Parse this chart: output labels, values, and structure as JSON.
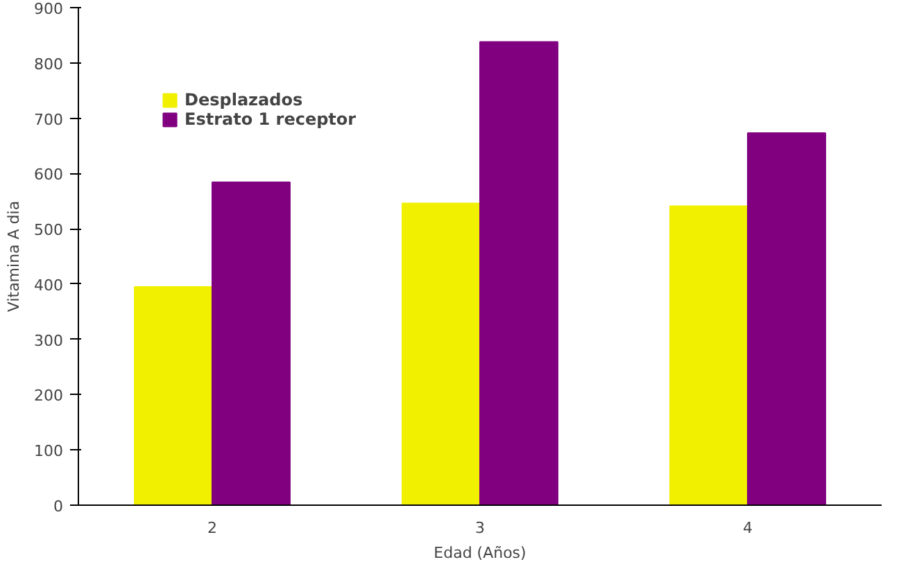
{
  "chart_data": {
    "type": "bar",
    "xlabel": "Edad (Años)",
    "ylabel": "Vitamina A dia",
    "categories": [
      "2",
      "3",
      "4"
    ],
    "series": [
      {
        "name": "Desplazados",
        "color": "#f0f000",
        "values": [
          395,
          546,
          541
        ]
      },
      {
        "name": "Estrato 1 receptor",
        "color": "#800080",
        "values": [
          584,
          838,
          673
        ]
      }
    ],
    "ylim": [
      0,
      900
    ],
    "yticks": [
      0,
      100,
      200,
      300,
      400,
      500,
      600,
      700,
      800,
      900
    ],
    "grid": false,
    "legend": "top left"
  }
}
